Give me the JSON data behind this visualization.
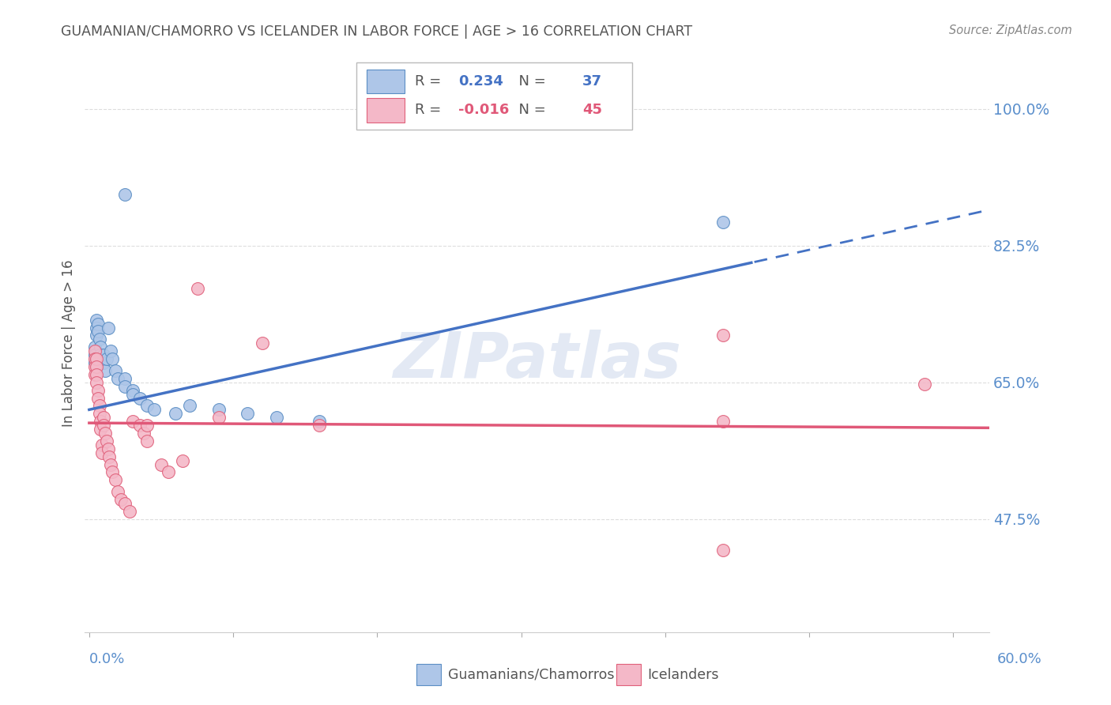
{
  "title": "GUAMANIAN/CHAMORRO VS ICELANDER IN LABOR FORCE | AGE > 16 CORRELATION CHART",
  "source": "Source: ZipAtlas.com",
  "ylabel": "In Labor Force | Age > 16",
  "ytick_positions": [
    0.475,
    0.65,
    0.825,
    1.0
  ],
  "ytick_labels": [
    "47.5%",
    "65.0%",
    "82.5%",
    "100.0%"
  ],
  "ymin": 0.33,
  "ymax": 1.07,
  "xmin": -0.003,
  "xmax": 0.625,
  "blue_R": "0.234",
  "blue_N": "37",
  "pink_R": "-0.016",
  "pink_N": "45",
  "blue_fill": "#aec6e8",
  "blue_edge": "#5b8ec4",
  "pink_fill": "#f4b8c8",
  "pink_edge": "#e0607a",
  "blue_line": "#4472c4",
  "pink_line": "#e05878",
  "legend_label_blue": "Guamanians/Chamorros",
  "legend_label_pink": "Icelanders",
  "bg": "#ffffff",
  "grid_color": "#dddddd",
  "title_color": "#555555",
  "axis_tick_color": "#5b8fcc",
  "blue_x": [
    0.004,
    0.004,
    0.004,
    0.005,
    0.005,
    0.005,
    0.005,
    0.006,
    0.006,
    0.007,
    0.008,
    0.008,
    0.009,
    0.01,
    0.01,
    0.011,
    0.012,
    0.013,
    0.015,
    0.016,
    0.018,
    0.02,
    0.025,
    0.025,
    0.03,
    0.03,
    0.035,
    0.04,
    0.045,
    0.06,
    0.07,
    0.09,
    0.11,
    0.13,
    0.16,
    0.44,
    0.025
  ],
  "blue_y": [
    0.695,
    0.685,
    0.675,
    0.73,
    0.72,
    0.71,
    0.68,
    0.725,
    0.715,
    0.705,
    0.695,
    0.685,
    0.675,
    0.685,
    0.675,
    0.665,
    0.68,
    0.72,
    0.69,
    0.68,
    0.665,
    0.655,
    0.655,
    0.645,
    0.64,
    0.635,
    0.63,
    0.62,
    0.615,
    0.61,
    0.62,
    0.615,
    0.61,
    0.605,
    0.6,
    0.855,
    0.89
  ],
  "pink_x": [
    0.004,
    0.004,
    0.004,
    0.004,
    0.005,
    0.005,
    0.005,
    0.005,
    0.006,
    0.006,
    0.007,
    0.007,
    0.008,
    0.008,
    0.009,
    0.009,
    0.01,
    0.01,
    0.011,
    0.012,
    0.013,
    0.014,
    0.015,
    0.016,
    0.018,
    0.02,
    0.022,
    0.025,
    0.028,
    0.03,
    0.035,
    0.038,
    0.04,
    0.05,
    0.055,
    0.065,
    0.075,
    0.09,
    0.12,
    0.16,
    0.44,
    0.44,
    0.44,
    0.58,
    0.04
  ],
  "pink_y": [
    0.69,
    0.68,
    0.67,
    0.66,
    0.68,
    0.67,
    0.66,
    0.65,
    0.64,
    0.63,
    0.62,
    0.61,
    0.6,
    0.59,
    0.57,
    0.56,
    0.605,
    0.595,
    0.585,
    0.575,
    0.565,
    0.555,
    0.545,
    0.535,
    0.525,
    0.51,
    0.5,
    0.495,
    0.485,
    0.6,
    0.595,
    0.585,
    0.575,
    0.545,
    0.535,
    0.55,
    0.77,
    0.605,
    0.7,
    0.595,
    0.435,
    0.71,
    0.6,
    0.648,
    0.595
  ]
}
